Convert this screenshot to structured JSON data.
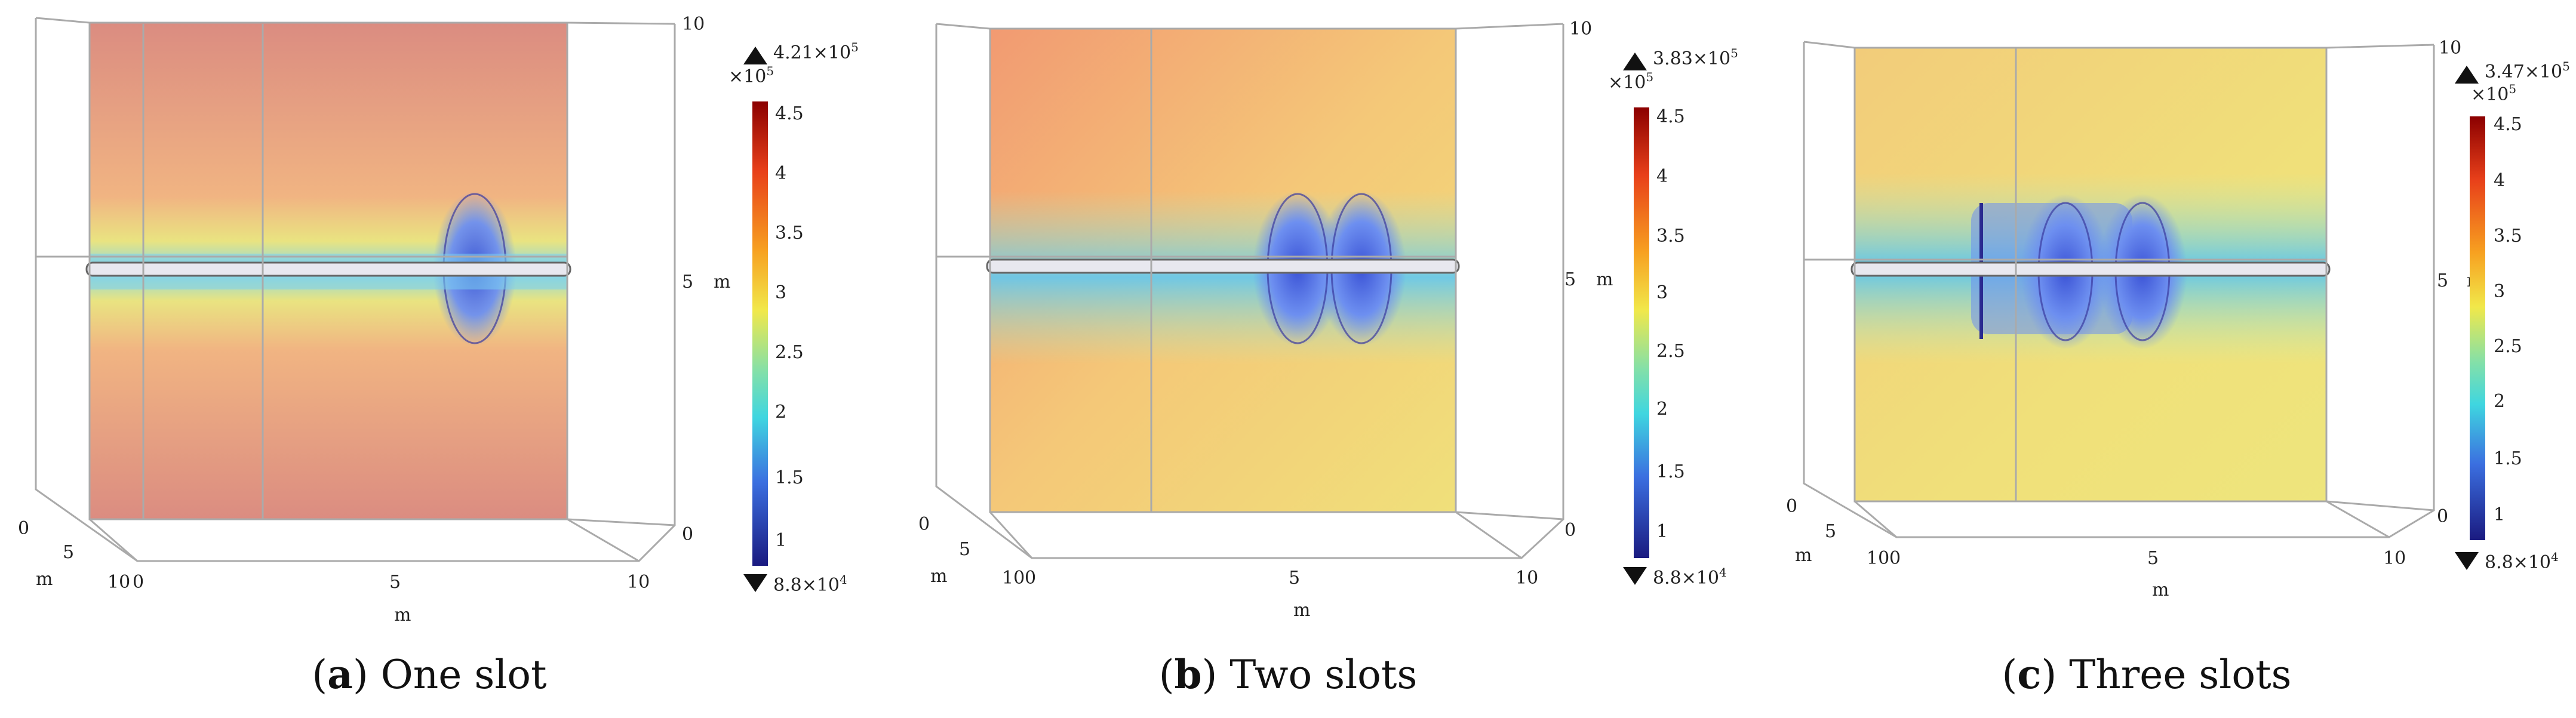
{
  "panels": [
    {
      "letter": "a",
      "caption_text": "One slot",
      "max_label": "4.21×10",
      "max_exp": "5",
      "min_label": "8.8×10",
      "min_exp": "4",
      "scale_factor": "×10",
      "scale_exp": "5",
      "slots": 1
    },
    {
      "letter": "b",
      "caption_text": "Two slots",
      "max_label": "3.83×10",
      "max_exp": "5",
      "min_label": "8.8×10",
      "min_exp": "4",
      "scale_factor": "×10",
      "scale_exp": "5",
      "slots": 2
    },
    {
      "letter": "c",
      "caption_text": "Three slots",
      "max_label": "3.47×10",
      "max_exp": "5",
      "min_label": "8.8×10",
      "min_exp": "4",
      "scale_factor": "×10",
      "scale_exp": "5",
      "slots": 3
    }
  ],
  "colorbar_ticks": [
    "4.5",
    "4",
    "3.5",
    "3",
    "2.5",
    "2",
    "1.5",
    "1"
  ],
  "axes": {
    "z_ticks": [
      "10",
      "5",
      "0"
    ],
    "z_label": "m",
    "x_ticks": [
      "0",
      "5",
      "10"
    ],
    "x_label": "m",
    "y_ticks": [
      "0",
      "5",
      "10"
    ],
    "y_label": "m"
  },
  "colors": {
    "field_high": "#d9867a",
    "field_mid": "#f2c27a",
    "field_low": "#5aa0e6",
    "colorbar_top": "#8b0000",
    "colorbar_bottom": "#1a1a80"
  }
}
